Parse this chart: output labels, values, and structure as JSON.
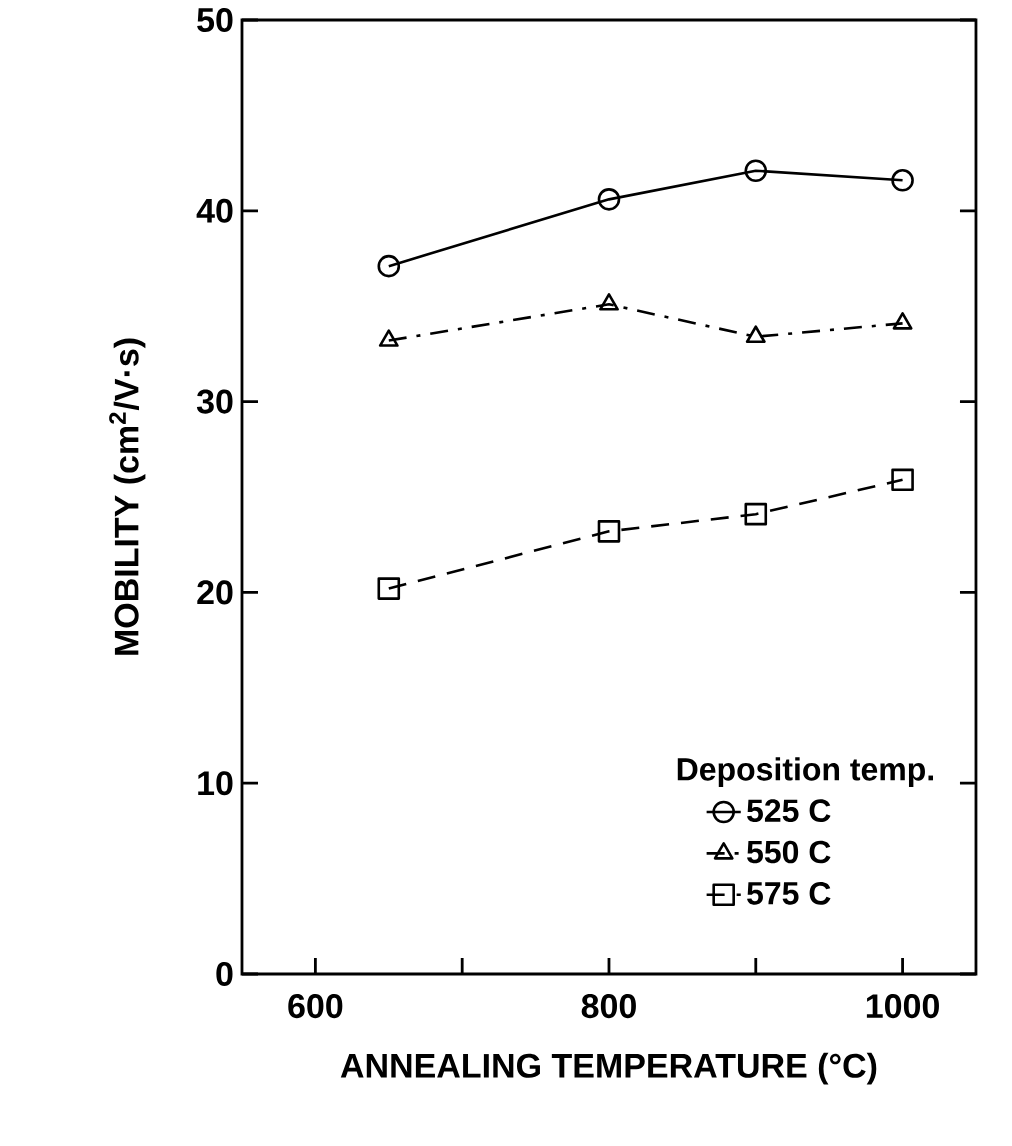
{
  "chart_data": {
    "type": "line",
    "xlabel": "ANNEALING  TEMPERATURE  (°C)",
    "ylabel": "MOBILITY  (cm$^{2}$/V·s)",
    "legend_title": "Deposition  temp.",
    "x": [
      650,
      800,
      900,
      1000
    ],
    "series": [
      {
        "name": "525 C",
        "color": "#000000",
        "marker": "circle",
        "line_style": "solid",
        "values": [
          37.1,
          40.6,
          42.1,
          41.6
        ]
      },
      {
        "name": "550 C",
        "color": "#000000",
        "marker": "triangle",
        "line_style": "dashdot",
        "values": [
          33.2,
          35.1,
          33.4,
          34.1
        ]
      },
      {
        "name": "575 C",
        "color": "#000000",
        "marker": "square",
        "line_style": "dashed",
        "values": [
          20.2,
          23.2,
          24.1,
          25.9
        ]
      }
    ],
    "xlim": [
      550,
      1050
    ],
    "xticks": [
      600,
      {
        "value": 700,
        "label": null
      },
      800,
      {
        "value": 900,
        "label": null
      },
      1000
    ],
    "ylim": [
      0,
      50
    ],
    "yticks": [
      0,
      10,
      20,
      30,
      40,
      50
    ],
    "grid": false,
    "legend": "bottom right"
  }
}
